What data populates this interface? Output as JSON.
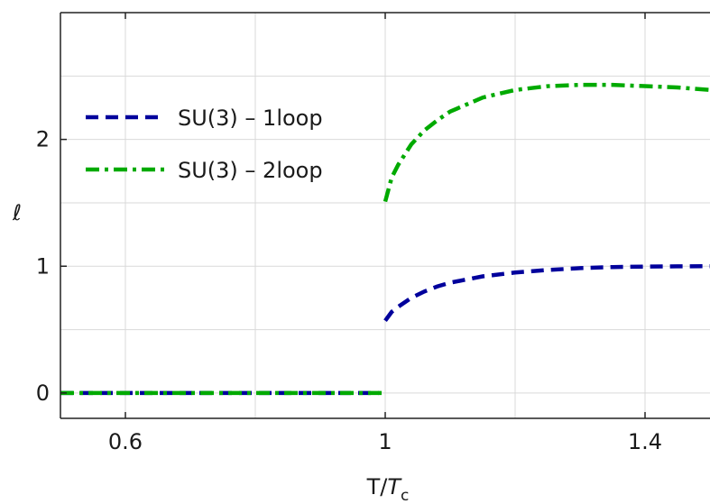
{
  "chart_data": {
    "type": "line",
    "xlabel_parts": [
      "T/",
      "T",
      "c"
    ],
    "ylabel": "ℓ",
    "xlim": [
      0.5,
      1.5
    ],
    "ylim": [
      -0.2,
      3.0
    ],
    "xticks": [
      {
        "value": 0.6,
        "label": "0.6"
      },
      {
        "value": 1.0,
        "label": "1"
      },
      {
        "value": 1.4,
        "label": "1.4"
      }
    ],
    "yticks": [
      {
        "value": 0,
        "label": "0"
      },
      {
        "value": 1,
        "label": "1"
      },
      {
        "value": 2,
        "label": "2"
      }
    ],
    "xgrid": [
      0.6,
      0.8,
      1.0,
      1.2,
      1.4
    ],
    "ygrid": [
      0,
      0.5,
      1.0,
      1.5,
      2.0,
      2.5
    ],
    "grid": true,
    "legend_position": "top-left",
    "series": [
      {
        "name": "SU(3) – 1loop",
        "color": "#00009c",
        "style": "dashed",
        "segments": [
          [
            [
              0.5,
              0
            ],
            [
              0.99,
              0
            ]
          ],
          [
            [
              1.0,
              0.57
            ],
            [
              1.01,
              0.64
            ],
            [
              1.02,
              0.68
            ],
            [
              1.04,
              0.75
            ],
            [
              1.06,
              0.8
            ],
            [
              1.08,
              0.84
            ],
            [
              1.1,
              0.87
            ],
            [
              1.15,
              0.92
            ],
            [
              1.2,
              0.95
            ],
            [
              1.25,
              0.97
            ],
            [
              1.3,
              0.985
            ],
            [
              1.35,
              0.993
            ],
            [
              1.4,
              0.997
            ],
            [
              1.45,
              0.999
            ],
            [
              1.5,
              1.0
            ]
          ]
        ]
      },
      {
        "name": "SU(3) – 2loop",
        "color": "#00aa00",
        "style": "dashdot",
        "segments": [
          [
            [
              0.5,
              0
            ],
            [
              1.0,
              0
            ]
          ],
          [
            [
              1.0,
              1.51
            ],
            [
              1.01,
              1.7
            ],
            [
              1.02,
              1.8
            ],
            [
              1.04,
              1.96
            ],
            [
              1.06,
              2.07
            ],
            [
              1.08,
              2.15
            ],
            [
              1.1,
              2.22
            ],
            [
              1.15,
              2.33
            ],
            [
              1.2,
              2.39
            ],
            [
              1.25,
              2.42
            ],
            [
              1.3,
              2.43
            ],
            [
              1.35,
              2.43
            ],
            [
              1.4,
              2.42
            ],
            [
              1.45,
              2.41
            ],
            [
              1.5,
              2.39
            ]
          ]
        ]
      }
    ]
  }
}
